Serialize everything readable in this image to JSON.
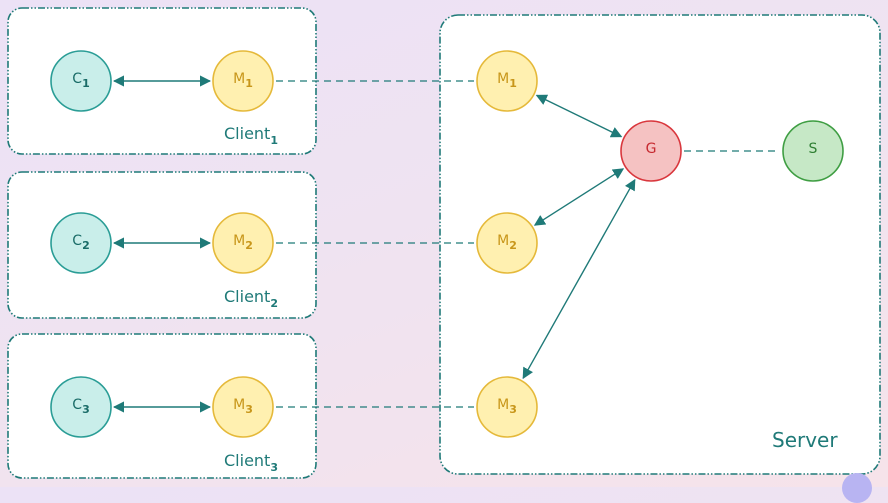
{
  "diagram": {
    "client_boxes": [
      {
        "id": "client1",
        "label": "Client",
        "sub": "1"
      },
      {
        "id": "client2",
        "label": "Client",
        "sub": "2"
      },
      {
        "id": "client3",
        "label": "Client",
        "sub": "3"
      }
    ],
    "server_box": {
      "id": "server",
      "label": "Server"
    },
    "nodes": [
      {
        "id": "c1",
        "label": "C",
        "sub": "1",
        "type": "client"
      },
      {
        "id": "cm1",
        "label": "M",
        "sub": "1",
        "type": "model"
      },
      {
        "id": "c2",
        "label": "C",
        "sub": "2",
        "type": "client"
      },
      {
        "id": "cm2",
        "label": "M",
        "sub": "2",
        "type": "model"
      },
      {
        "id": "c3",
        "label": "C",
        "sub": "3",
        "type": "client"
      },
      {
        "id": "cm3",
        "label": "M",
        "sub": "3",
        "type": "model"
      },
      {
        "id": "sm1",
        "label": "M",
        "sub": "1",
        "type": "model"
      },
      {
        "id": "sm2",
        "label": "M",
        "sub": "2",
        "type": "model"
      },
      {
        "id": "sm3",
        "label": "M",
        "sub": "3",
        "type": "model"
      },
      {
        "id": "g",
        "label": "G",
        "sub": "",
        "type": "gateway"
      },
      {
        "id": "s",
        "label": "S",
        "sub": "",
        "type": "store"
      }
    ],
    "edges": [
      {
        "from": "c1",
        "to": "cm1",
        "style": "solid-bidirectional"
      },
      {
        "from": "c2",
        "to": "cm2",
        "style": "solid-bidirectional"
      },
      {
        "from": "c3",
        "to": "cm3",
        "style": "solid-bidirectional"
      },
      {
        "from": "cm1",
        "to": "sm1",
        "style": "dashed"
      },
      {
        "from": "cm2",
        "to": "sm2",
        "style": "dashed"
      },
      {
        "from": "cm3",
        "to": "sm3",
        "style": "dashed"
      },
      {
        "from": "sm1",
        "to": "g",
        "style": "solid-bidirectional"
      },
      {
        "from": "sm2",
        "to": "g",
        "style": "solid-bidirectional"
      },
      {
        "from": "sm3",
        "to": "g",
        "style": "solid-bidirectional"
      },
      {
        "from": "g",
        "to": "s",
        "style": "dashed"
      }
    ]
  },
  "colors": {
    "box_stroke": "#1f7a78",
    "client_fill": "#c9eeea",
    "client_stroke": "#2a9d96",
    "client_text": "#1a6c68",
    "model_fill": "#fff0b0",
    "model_stroke": "#e5b93a",
    "model_text": "#c8961a",
    "gateway_fill": "#f5c2c2",
    "gateway_stroke": "#d9373d",
    "gateway_text": "#c62a30",
    "store_fill": "#c6e8c6",
    "store_stroke": "#3f9e43",
    "store_text": "#2f7f33"
  }
}
